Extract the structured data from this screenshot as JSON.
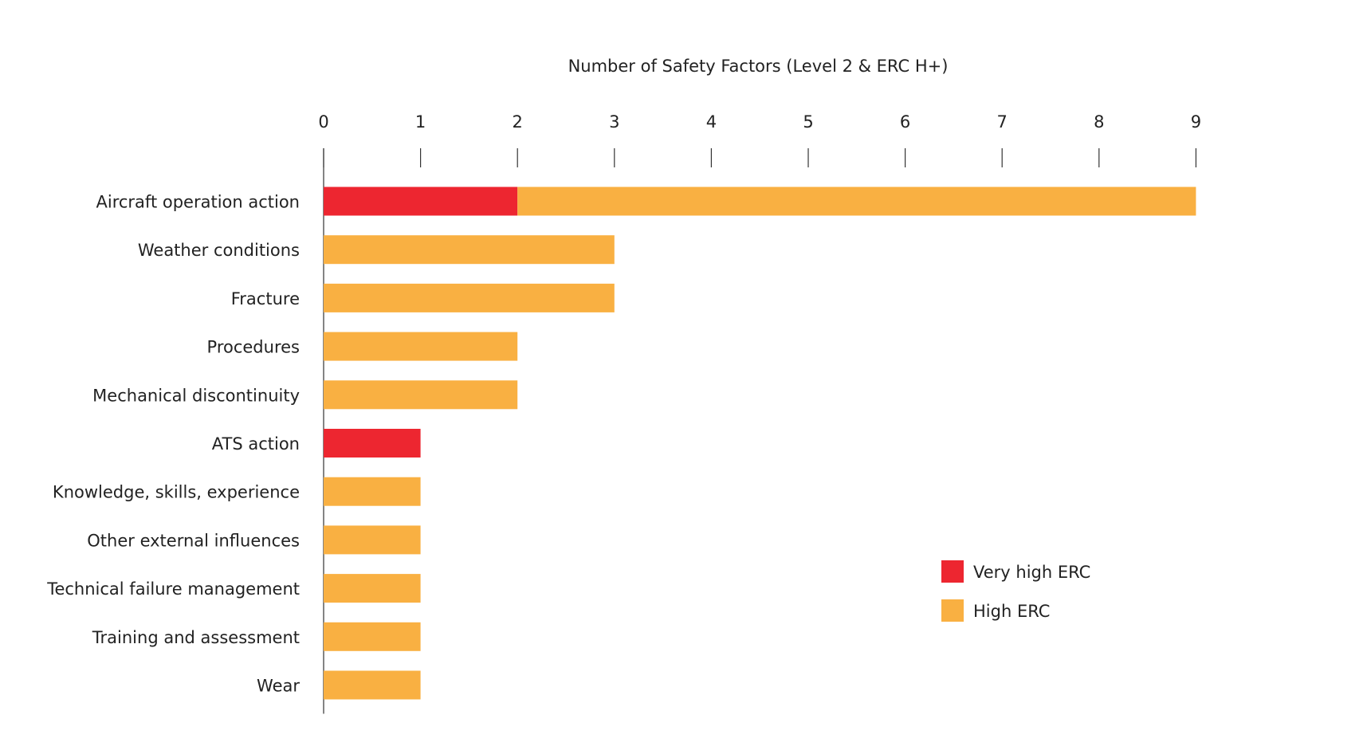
{
  "chart_data": {
    "type": "bar",
    "orientation": "horizontal",
    "stacked": true,
    "title": "Number of Safety Factors (Level 2 & ERC H+)",
    "xlabel": "",
    "ylabel": "",
    "xlim": [
      0,
      9
    ],
    "ticks": [
      "0",
      "1",
      "2",
      "3",
      "4",
      "5",
      "6",
      "7",
      "8",
      "9"
    ],
    "categories": [
      "Aircraft operation action",
      "Weather conditions",
      "Fracture",
      "Procedures",
      "Mechanical discontinuity",
      "ATS action",
      "Knowledge, skills, experience",
      "Other external influences",
      "Technical failure management",
      "Training and assessment",
      "Wear"
    ],
    "series": [
      {
        "name": "Very high ERC",
        "color": "#ed2630",
        "values": [
          2,
          0,
          0,
          0,
          0,
          1,
          0,
          0,
          0,
          0,
          0
        ]
      },
      {
        "name": "High ERC",
        "color": "#f9b042",
        "values": [
          7,
          3,
          3,
          2,
          2,
          0,
          1,
          1,
          1,
          1,
          1
        ]
      }
    ],
    "grid": false,
    "axis_position": "top",
    "legend_position": "bottom-right"
  }
}
